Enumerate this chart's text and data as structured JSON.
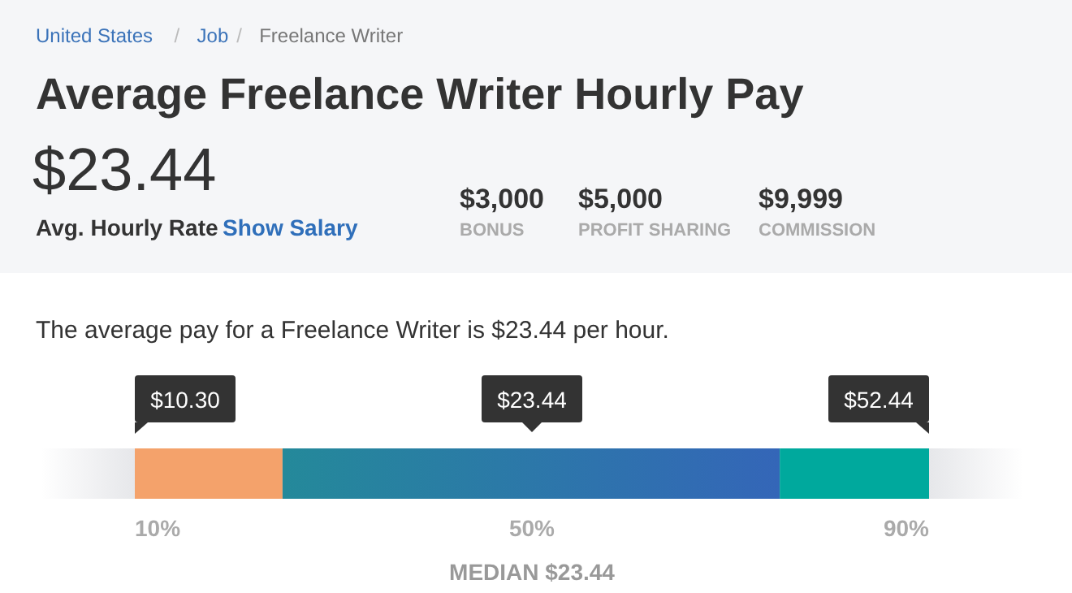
{
  "chart_data": [
    {
      "type": "other",
      "title": "Average Freelance Writer Hourly Pay",
      "annotations": [
        "United States",
        "/",
        "Job",
        "/",
        "Freelance Writer",
        "$23.44",
        "Avg. Hourly Rate",
        "Show Salary",
        "$3,000",
        "BONUS",
        "$5,000",
        "PROFIT SHARING",
        "$9,999",
        "COMMISSION"
      ]
    },
    {
      "type": "other",
      "title": "The average pay for a Freelance Writer is $23.44 per hour.",
      "categories": [
        "10%",
        "50%",
        "90%"
      ],
      "values": [
        10.3,
        23.44,
        52.44
      ],
      "value_labels": [
        "$10.30",
        "$23.44",
        "$52.44"
      ],
      "annotations": [
        "MEDIAN $23.44"
      ]
    }
  ]
}
